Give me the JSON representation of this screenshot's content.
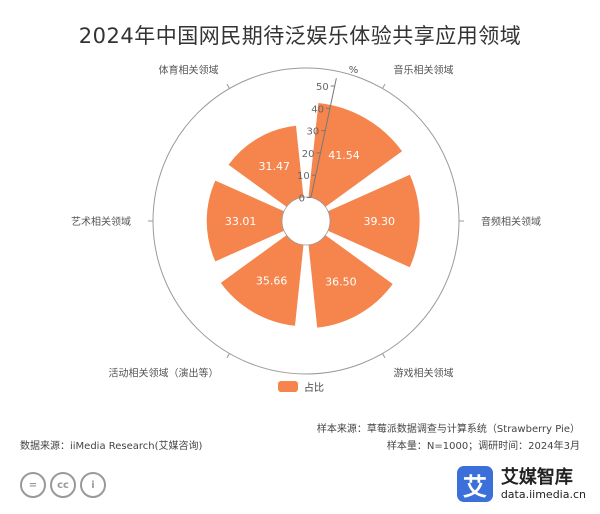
{
  "title": "2024年中国网民期待泛娱乐体验共享应用领域",
  "chart_data": {
    "type": "polar-bar",
    "categories": [
      "音乐相关领域",
      "音频相关领域",
      "游戏相关领域",
      "活动相关领域（演出等）",
      "艺术相关领域",
      "体育相关领域"
    ],
    "values": [
      41.54,
      39.3,
      36.5,
      35.66,
      33.01,
      31.47
    ],
    "value_labels": [
      "41.54",
      "39.30",
      "36.50",
      "35.66",
      "33.01",
      "31.47"
    ],
    "radial_axis": {
      "unit": "%",
      "ticks": [
        "0",
        "10",
        "20",
        "30",
        "40",
        "50"
      ],
      "range": [
        0,
        50
      ]
    },
    "series": [
      {
        "name": "占比",
        "color": "#f5854d"
      }
    ]
  },
  "legend_label": "占比",
  "source": "数据来源：iiMedia Research(艾媒咨询)",
  "sample_source": "样本来源：草莓派数据调查与计算系统（Strawberry Pie）",
  "sample_size": "样本量：N=1000；调研时间：2024年3月",
  "license_icons": [
    "=",
    "cc",
    "i"
  ],
  "logo": {
    "mark": "艾",
    "name": "艾媒智库",
    "url": "data.iimedia.cn"
  }
}
